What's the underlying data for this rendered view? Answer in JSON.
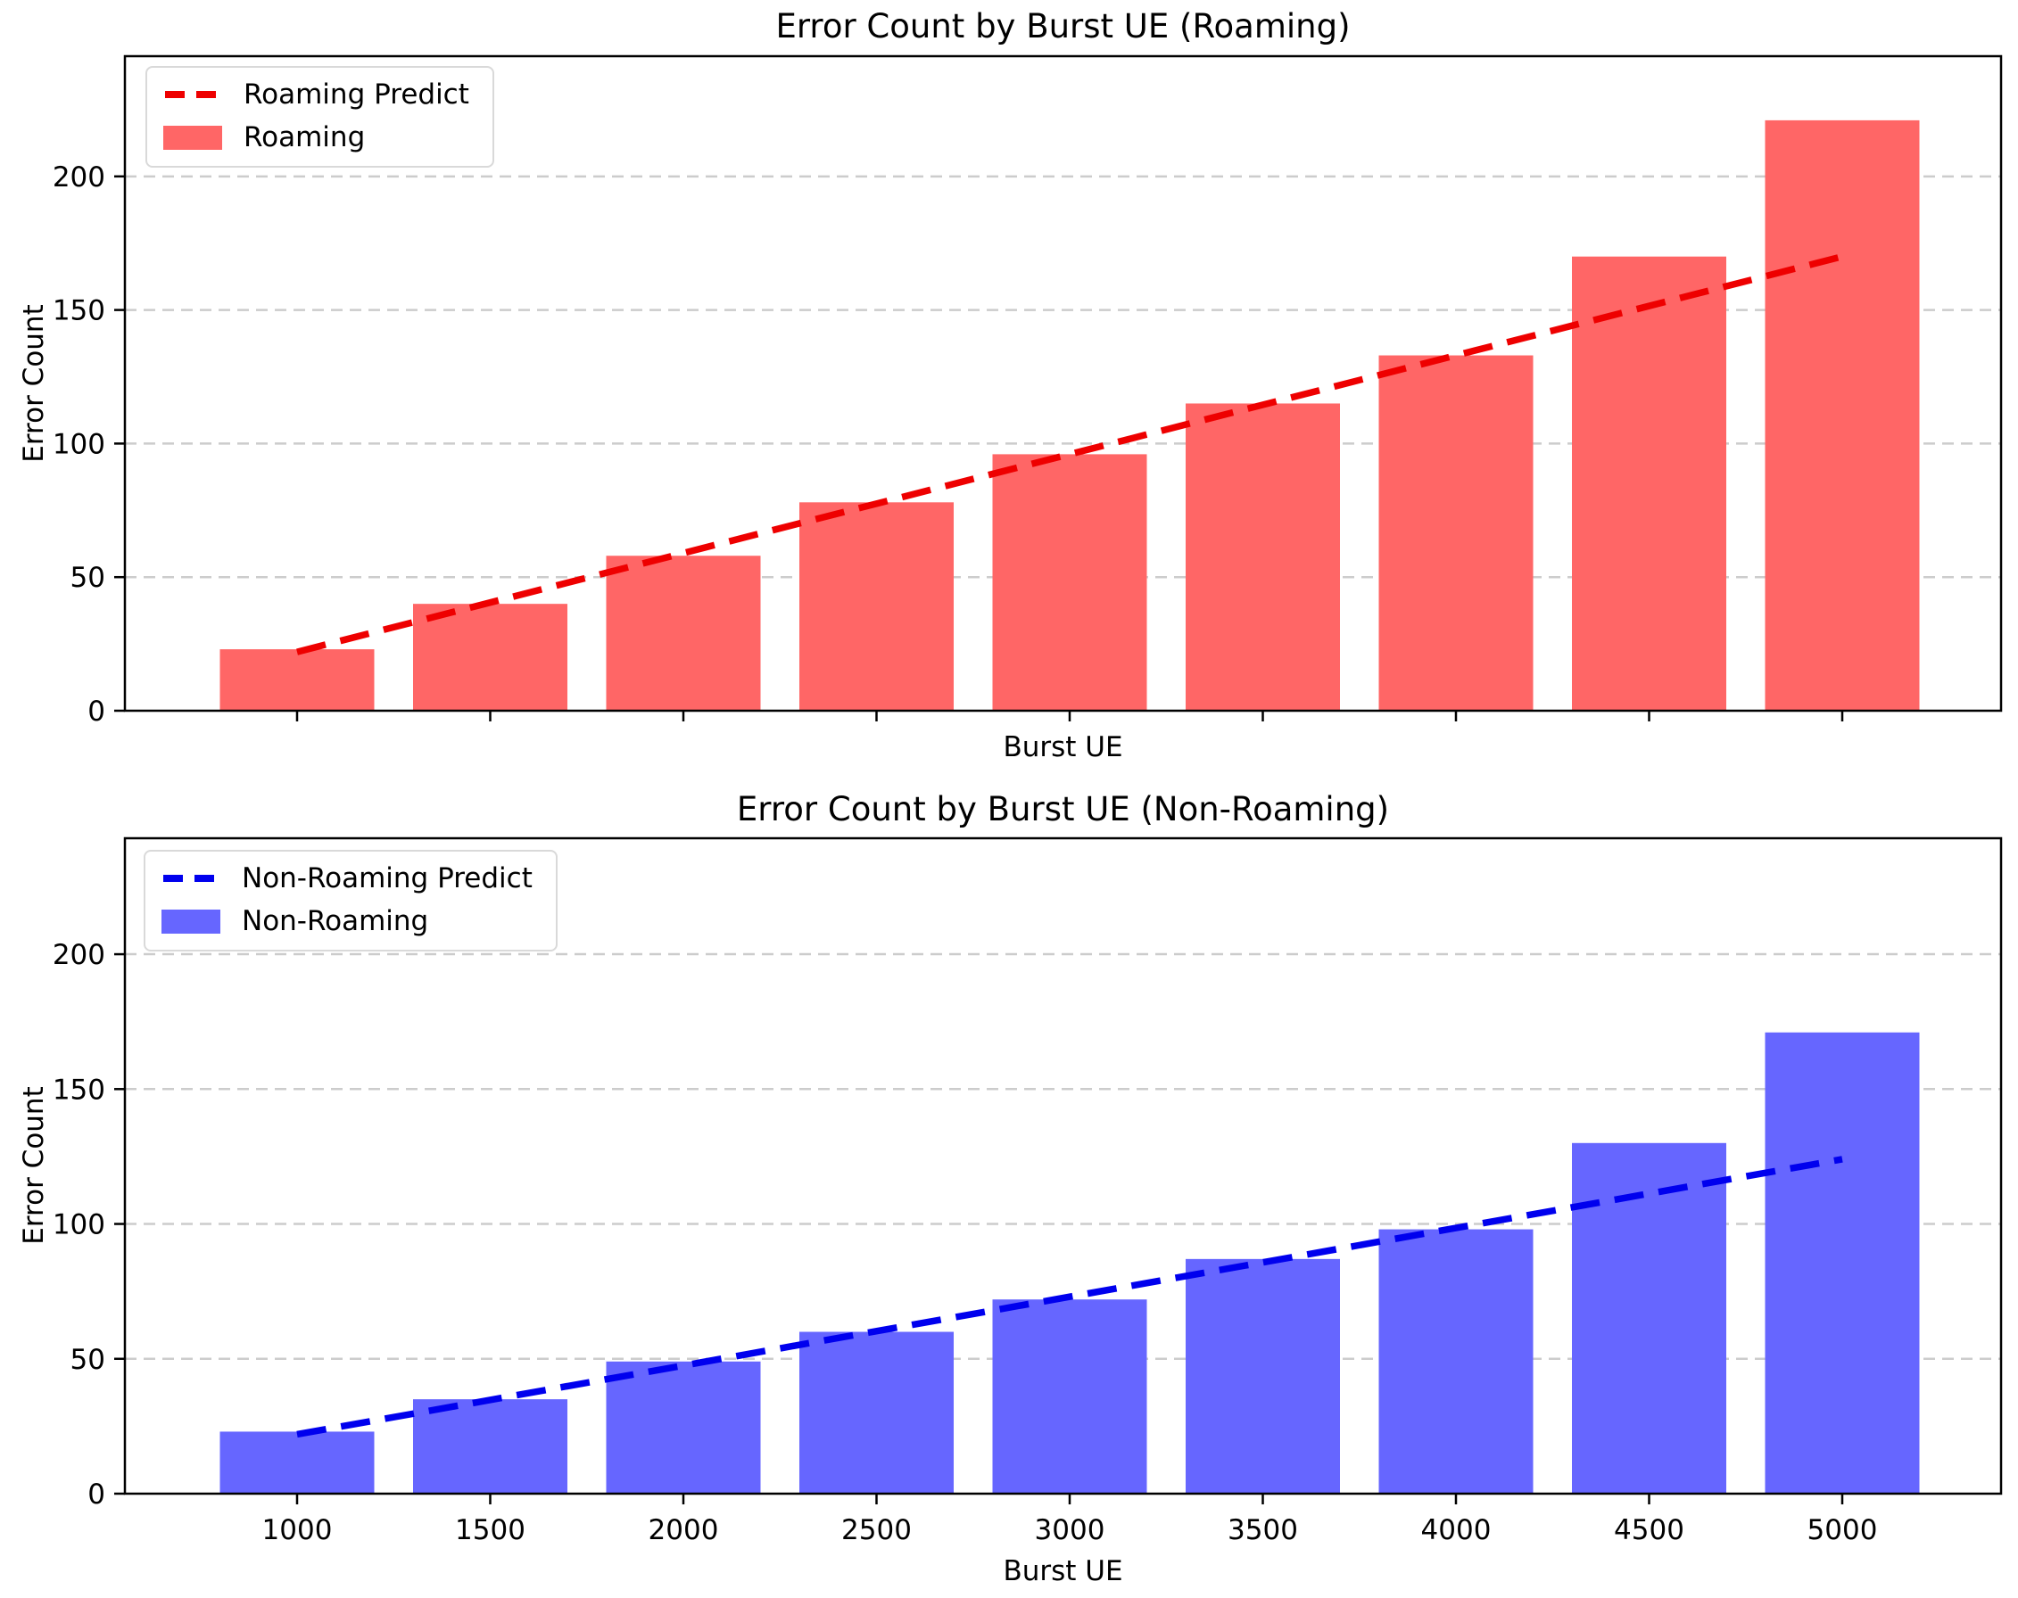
{
  "figure": {
    "background": "#ffffff",
    "grid_color": "#cccccc",
    "axis_color": "#000000"
  },
  "chart_data": [
    {
      "type": "bar",
      "title": "Error Count by Burst UE (Roaming)",
      "xlabel": "Burst UE",
      "ylabel": "Error Count",
      "categories": [
        1000,
        1500,
        2000,
        2500,
        3000,
        3500,
        4000,
        4500,
        5000
      ],
      "series": [
        {
          "name": "Roaming",
          "type": "bar",
          "color": "#ff6666",
          "values": [
            23,
            40,
            58,
            78,
            96,
            115,
            133,
            170,
            221
          ]
        },
        {
          "name": "Roaming Predict",
          "type": "dashed-line",
          "color": "#ee0000",
          "x": [
            1000,
            5000
          ],
          "values": [
            22,
            170
          ]
        }
      ],
      "ylim": [
        0,
        245
      ],
      "yticks": [
        0,
        50,
        100,
        150,
        200
      ],
      "show_x_tick_labels": false,
      "grid": "horizontal-dashed",
      "legend_position": "upper-left"
    },
    {
      "type": "bar",
      "title": "Error Count by Burst UE (Non-Roaming)",
      "xlabel": "Burst UE",
      "ylabel": "Error Count",
      "categories": [
        1000,
        1500,
        2000,
        2500,
        3000,
        3500,
        4000,
        4500,
        5000
      ],
      "series": [
        {
          "name": "Non-Roaming",
          "type": "bar",
          "color": "#6666ff",
          "values": [
            23,
            35,
            49,
            60,
            72,
            87,
            98,
            130,
            171
          ]
        },
        {
          "name": "Non-Roaming Predict",
          "type": "dashed-line",
          "color": "#0000ee",
          "x": [
            1000,
            5000
          ],
          "values": [
            22,
            124
          ]
        }
      ],
      "ylim": [
        0,
        243
      ],
      "yticks": [
        0,
        50,
        100,
        150,
        200
      ],
      "show_x_tick_labels": true,
      "grid": "horizontal-dashed",
      "legend_position": "upper-left"
    }
  ]
}
